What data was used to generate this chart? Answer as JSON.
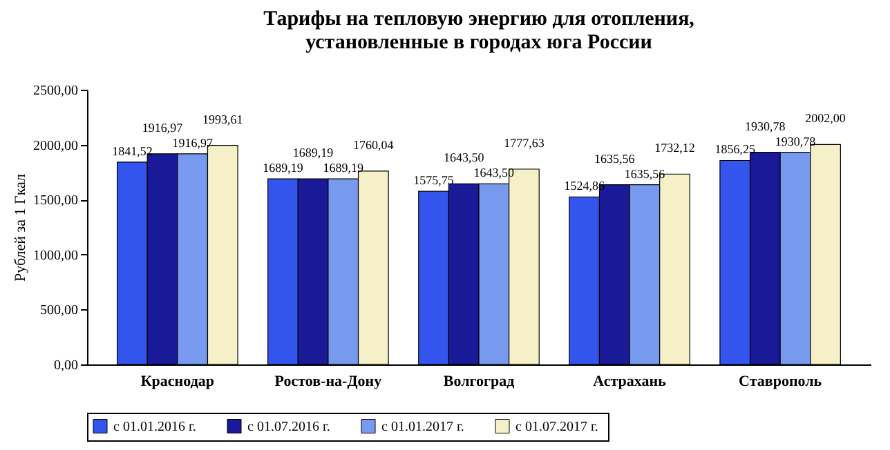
{
  "chart_data": {
    "type": "bar",
    "title": "Тарифы на тепловую энергию для отопления,\nустановленные в городах юга России",
    "ylabel": "Рублей  за  1  Гкал",
    "categories": [
      "Краснодар",
      "Ростов-на-Дону",
      "Волгоград",
      "Астрахань",
      "Ставрополь"
    ],
    "series": [
      {
        "name": "с 01.01.2016  г.",
        "color": "#3355ee",
        "values": [
          1841.52,
          1689.19,
          1575.75,
          1524.86,
          1856.25
        ],
        "value_labels": [
          "1841,52",
          "1689,19",
          "1575,75",
          "1524,86",
          "1856,25"
        ]
      },
      {
        "name": "с 01.07.2016  г.",
        "color": "#1a1a99",
        "values": [
          1916.97,
          1689.19,
          1643.5,
          1635.56,
          1930.78
        ],
        "value_labels": [
          "1916,97",
          "1689,19",
          "1643,50",
          "1635,56",
          "1930,78"
        ]
      },
      {
        "name": "с 01.01.2017  г.",
        "color": "#7799ee",
        "values": [
          1916.97,
          1689.19,
          1643.5,
          1635.56,
          1930.78
        ],
        "value_labels": [
          "1916,97",
          "1689,19",
          "1643,50",
          "1635,56",
          "1930,78"
        ]
      },
      {
        "name": "с 01.07.2017  г.",
        "color": "#f5f0c8",
        "values": [
          1993.61,
          1760.04,
          1777.63,
          1732.12,
          2002.0
        ],
        "value_labels": [
          "1993,61",
          "1760,04",
          "1777,63",
          "1732,12",
          "2002,00"
        ]
      }
    ],
    "ylim": [
      0,
      2500
    ],
    "yticks": [
      {
        "value": 0,
        "label": "0,00"
      },
      {
        "value": 500,
        "label": "500,00"
      },
      {
        "value": 1000,
        "label": "1000,00"
      },
      {
        "value": 1500,
        "label": "1500,00"
      },
      {
        "value": 2000,
        "label": "2000,00"
      },
      {
        "value": 2500,
        "label": "2500,00"
      }
    ],
    "grid": false,
    "legend": "bottom"
  }
}
